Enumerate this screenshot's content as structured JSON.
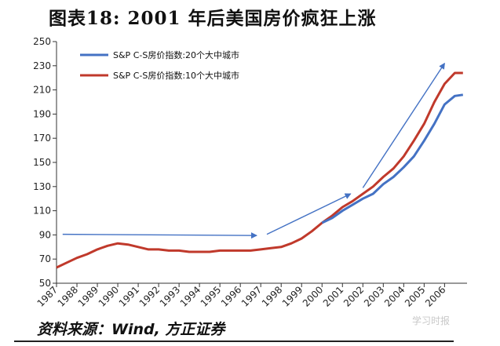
{
  "title": "图表18:  2001 年后美国房价疯狂上涨",
  "source": "资料来源：Wind, 方正证券",
  "watermark": "学习时报",
  "chart_data": {
    "type": "line",
    "title": "图表18:  2001 年后美国房价疯狂上涨",
    "xlabel": "",
    "ylabel": "",
    "ylim": [
      50,
      250
    ],
    "yticks": [
      50,
      70,
      90,
      110,
      130,
      150,
      170,
      190,
      210,
      230,
      250
    ],
    "ytick_labels": [
      "50",
      "70",
      "90",
      "110",
      "130",
      "150",
      "170",
      "190",
      "210",
      "230",
      "250"
    ],
    "xlim": [
      1987,
      2007.1
    ],
    "xticks": [
      1987,
      1988,
      1989,
      1990,
      1991,
      1992,
      1993,
      1994,
      1995,
      1996,
      1997,
      1998,
      1999,
      2000,
      2001,
      2002,
      2003,
      2004,
      2005,
      2006
    ],
    "xtick_labels": [
      "1987",
      "1988",
      "1989",
      "1990",
      "1991",
      "1992",
      "1993",
      "1994",
      "1995",
      "1996",
      "1997",
      "1998",
      "1999",
      "2000",
      "2001",
      "2002",
      "2003",
      "2004",
      "2005",
      "2006"
    ],
    "legend_position": "top-left",
    "grid": false,
    "series": [
      {
        "name": "S&P C-S房价指数:20个大中城市",
        "color": "#4472c4",
        "x": [
          2000.0,
          2000.5,
          2001.0,
          2001.5,
          2002.0,
          2002.5,
          2003.0,
          2003.5,
          2004.0,
          2004.5,
          2005.0,
          2005.5,
          2006.0,
          2006.5,
          2006.9
        ],
        "y": [
          100,
          104,
          110,
          115,
          120,
          124,
          132,
          138,
          146,
          155,
          168,
          182,
          198,
          205,
          206
        ]
      },
      {
        "name": "S&P C-S房价指数:10个大中城市",
        "color": "#c0392b",
        "x": [
          1987.0,
          1987.5,
          1988.0,
          1988.5,
          1989.0,
          1989.5,
          1990.0,
          1990.5,
          1991.0,
          1991.5,
          1992.0,
          1992.5,
          1993.0,
          1993.5,
          1994.0,
          1994.5,
          1995.0,
          1995.5,
          1996.0,
          1996.5,
          1997.0,
          1997.5,
          1998.0,
          1998.5,
          1999.0,
          1999.5,
          2000.0,
          2000.5,
          2001.0,
          2001.5,
          2002.0,
          2002.5,
          2003.0,
          2003.5,
          2004.0,
          2004.5,
          2005.0,
          2005.5,
          2006.0,
          2006.5,
          2006.9
        ],
        "y": [
          63,
          67,
          71,
          74,
          78,
          81,
          83,
          82,
          80,
          78,
          78,
          77,
          77,
          76,
          76,
          76,
          77,
          77,
          77,
          77,
          78,
          79,
          80,
          83,
          87,
          93,
          100,
          106,
          113,
          118,
          124,
          130,
          138,
          145,
          155,
          168,
          182,
          200,
          215,
          224,
          224
        ]
      }
    ],
    "annotations": [
      {
        "type": "arrow",
        "color": "#4472c4",
        "from": [
          1987.3,
          90.5
        ],
        "to": [
          1996.8,
          89.5
        ]
      },
      {
        "type": "arrow",
        "color": "#4472c4",
        "from": [
          1997.3,
          90.5
        ],
        "to": [
          2001.4,
          124
        ]
      },
      {
        "type": "arrow",
        "color": "#4472c4",
        "from": [
          2002.0,
          129
        ],
        "to": [
          2006.0,
          232
        ]
      }
    ]
  }
}
